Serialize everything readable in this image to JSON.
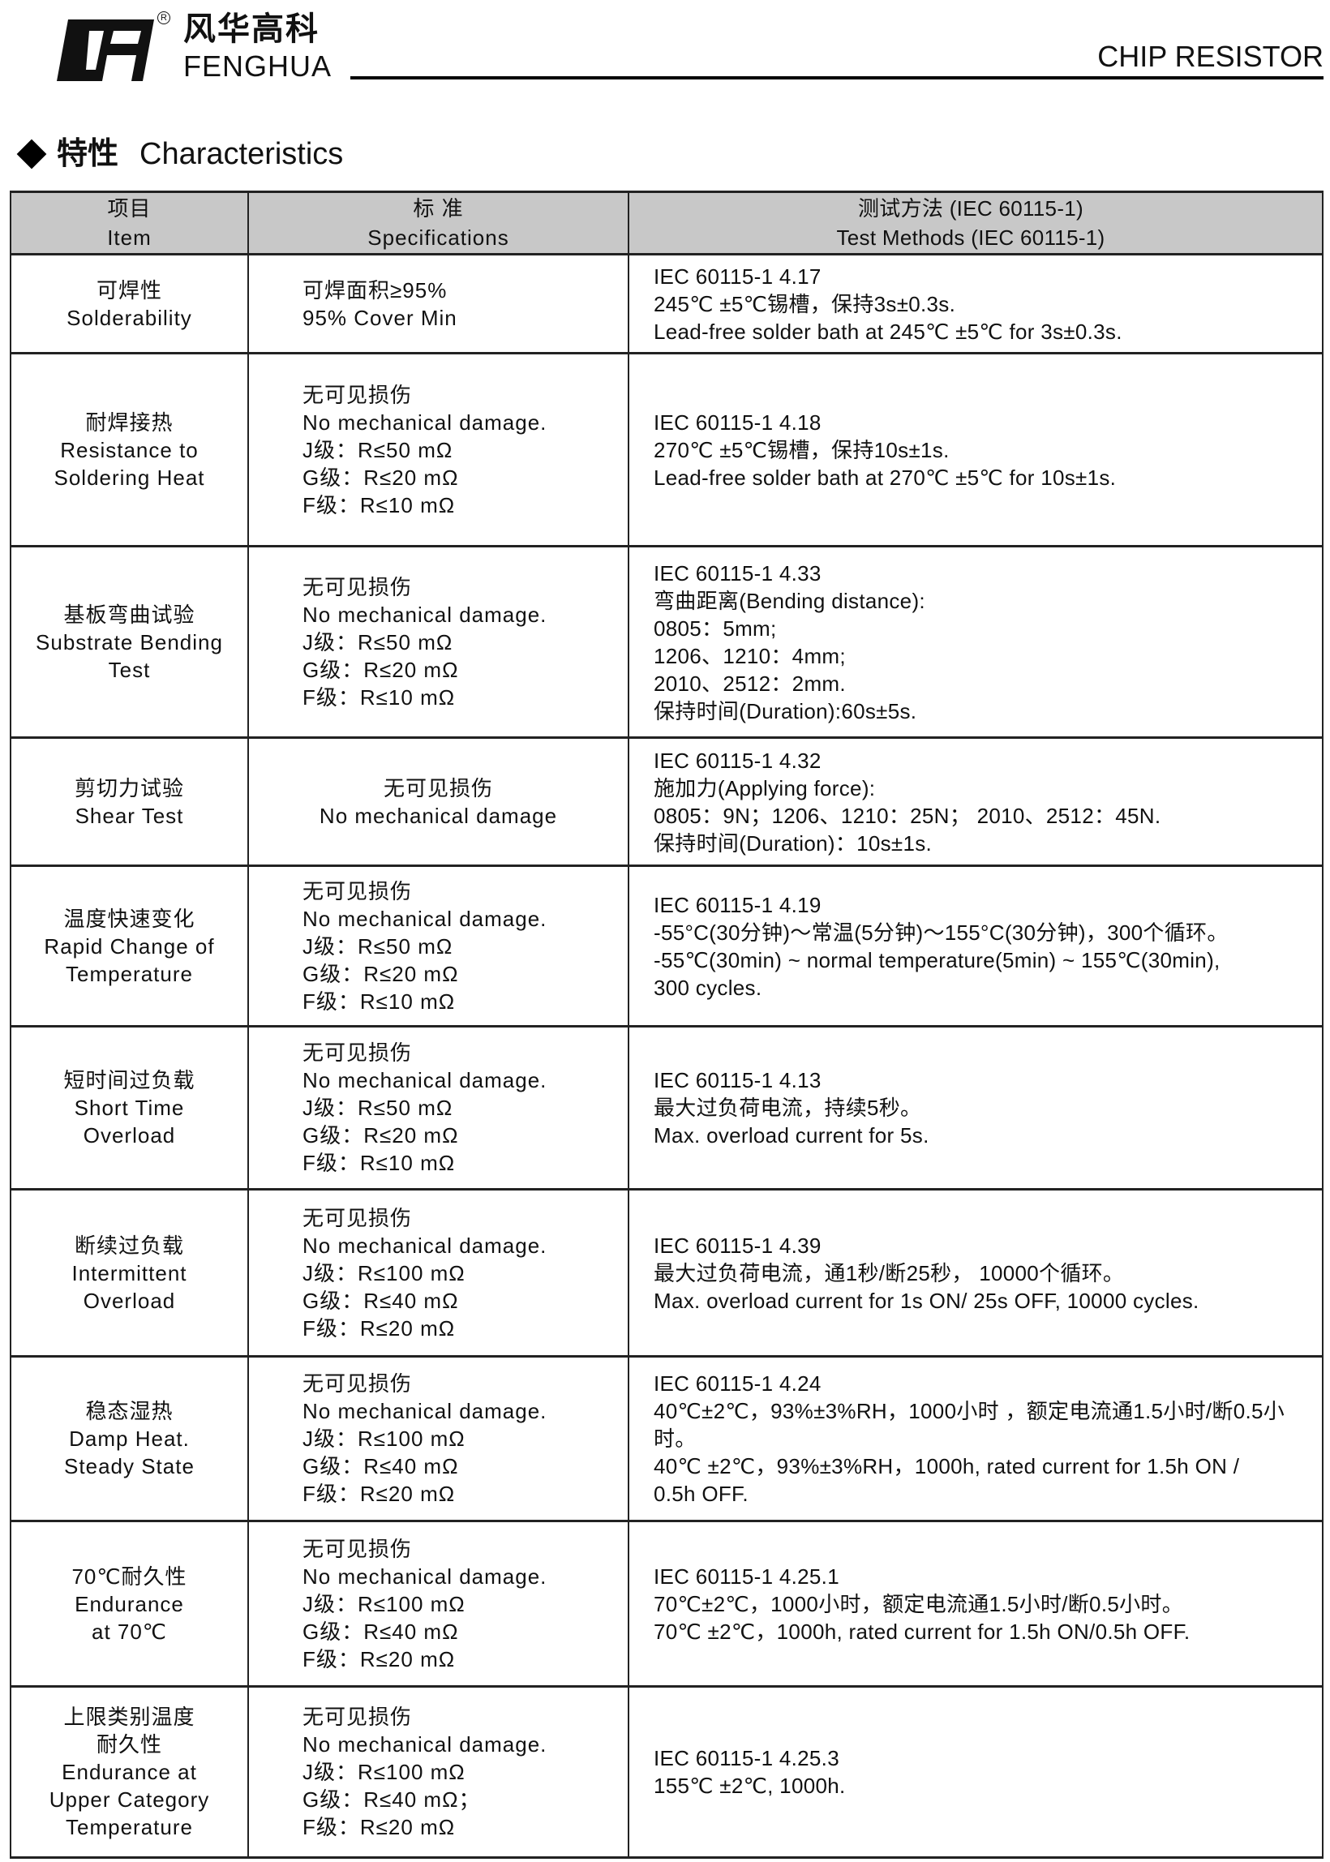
{
  "header": {
    "logo_cn": "风华高科",
    "logo_en": "FENGHUA",
    "registered_mark": "R",
    "doc_title": "CHIP RESISTOR"
  },
  "section": {
    "title_cn": "特性",
    "title_en": "Characteristics"
  },
  "table": {
    "columns": [
      {
        "cn": "项目",
        "en": "Item"
      },
      {
        "cn": "标 准",
        "en": "Specifications"
      },
      {
        "cn": "测试方法 (IEC 60115-1)",
        "en": "Test Methods (IEC 60115-1)"
      }
    ],
    "rows": [
      {
        "item": [
          "可焊性",
          "Solderability"
        ],
        "spec": [
          "可焊面积≥95%",
          "95% Cover Min"
        ],
        "test": [
          "IEC 60115-1 4.17",
          "245℃ ±5℃锡槽，保持3s±0.3s.",
          "Lead-free solder bath at 245℃ ±5℃ for 3s±0.3s."
        ]
      },
      {
        "item": [
          "耐焊接热",
          "Resistance to",
          "Soldering Heat"
        ],
        "spec": [
          "无可见损伤",
          "No mechanical damage.",
          "J级：R≤50 mΩ",
          "G级：R≤20 mΩ",
          "F级：R≤10 mΩ"
        ],
        "test": [
          "IEC 60115-1 4.18",
          "270℃ ±5℃锡槽，保持10s±1s.",
          "Lead-free solder bath at 270℃ ±5℃ for 10s±1s."
        ]
      },
      {
        "item": [
          "基板弯曲试验",
          "Substrate Bending",
          "Test"
        ],
        "spec": [
          "无可见损伤",
          "No mechanical damage.",
          "J级：R≤50 mΩ",
          "G级：R≤20 mΩ",
          "F级：R≤10 mΩ"
        ],
        "test": [
          "IEC 60115-1 4.33",
          "弯曲距离(Bending distance):",
          "0805：5mm;",
          "1206、1210：4mm;",
          "2010、2512：2mm.",
          "保持时间(Duration):60s±5s."
        ]
      },
      {
        "item": [
          "剪切力试验",
          "Shear Test"
        ],
        "spec": [
          "无可见损伤",
          "No mechanical damage"
        ],
        "spec_centered": true,
        "test": [
          "IEC 60115-1 4.32",
          "施加力(Applying force):",
          "0805：9N；1206、1210：25N；  2010、2512：45N.",
          "保持时间(Duration)：10s±1s."
        ]
      },
      {
        "item": [
          "温度快速变化",
          "Rapid Change of",
          "Temperature"
        ],
        "spec": [
          "无可见损伤",
          "No mechanical damage.",
          "J级：R≤50 mΩ",
          "G级：R≤20 mΩ",
          "F级：R≤10 mΩ"
        ],
        "test": [
          "IEC 60115-1 4.19",
          " -55°C(30分钟)～常温(5分钟)～155°C(30分钟)，300个循环。",
          " -55℃(30min) ~ normal temperature(5min) ~ 155℃(30min),",
          " 300 cycles."
        ]
      },
      {
        "item": [
          "短时间过负载",
          "Short Time",
          "Overload"
        ],
        "spec": [
          "无可见损伤",
          "No mechanical damage.",
          "J级：R≤50 mΩ",
          "G级：R≤20 mΩ",
          "F级：R≤10 mΩ"
        ],
        "test": [
          "IEC 60115-1 4.13",
          "最大过负荷电流，持续5秒。",
          "Max. overload current for 5s."
        ]
      },
      {
        "item": [
          "断续过负载",
          "Intermittent",
          "Overload"
        ],
        "spec": [
          "无可见损伤",
          "No mechanical damage.",
          "J级：R≤100 mΩ",
          "G级：R≤40 mΩ",
          "F级：R≤20 mΩ"
        ],
        "test": [
          "IEC 60115-1 4.39",
          "最大过负荷电流，通1秒/断25秒， 10000个循环。",
          "Max. overload current for 1s ON/ 25s OFF, 10000 cycles."
        ]
      },
      {
        "item": [
          "稳态湿热",
          "Damp Heat.",
          "Steady State"
        ],
        "spec": [
          "无可见损伤",
          "No mechanical damage.",
          "J级：R≤100 mΩ",
          "G级：R≤40 mΩ",
          "F级：R≤20 mΩ"
        ],
        "test": [
          "IEC 60115-1 4.24",
          "40℃±2℃，93%±3%RH，1000小时 ，额定电流通1.5小时/断0.5小时。",
          "40℃ ±2℃，93%±3%RH，1000h, rated current for 1.5h ON /",
          "0.5h OFF."
        ]
      },
      {
        "item": [
          "70℃耐久性",
          "Endurance",
          "at 70℃"
        ],
        "spec": [
          "无可见损伤",
          "No mechanical damage.",
          "J级：R≤100 mΩ",
          "G级：R≤40 mΩ",
          "F级：R≤20 mΩ"
        ],
        "test": [
          "IEC 60115-1 4.25.1",
          "70℃±2℃，1000小时，额定电流通1.5小时/断0.5小时。",
          "70℃ ±2℃，1000h, rated current for 1.5h ON/0.5h OFF."
        ]
      },
      {
        "item": [
          "上限类别温度",
          "耐久性",
          "Endurance at",
          "Upper Category",
          "Temperature"
        ],
        "spec": [
          "无可见损伤",
          "No mechanical damage.",
          "J级：R≤100 mΩ",
          "G级：R≤40 mΩ；",
          "F级：R≤20 mΩ"
        ],
        "test": [
          "IEC 60115-1 4.25.3",
          "155℃ ±2℃, 1000h."
        ]
      }
    ]
  }
}
